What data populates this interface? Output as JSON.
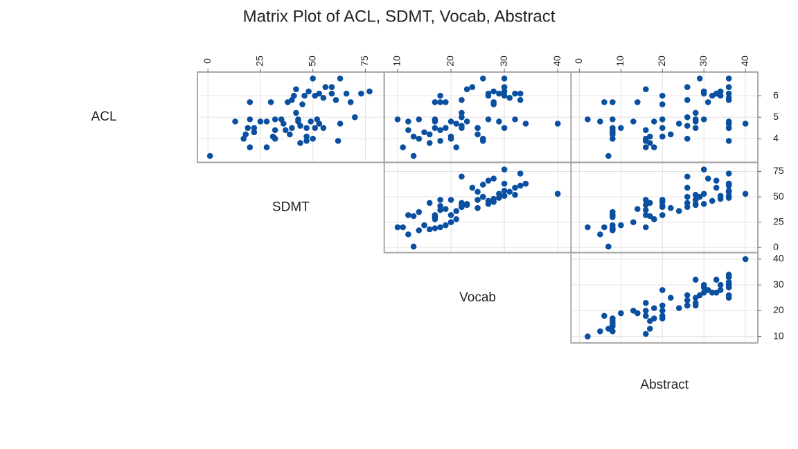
{
  "chart_data": {
    "type": "scatter-matrix",
    "title": "Matrix Plot of ACL, SDMT, Vocab, Abstract",
    "color": "#0a4fa0",
    "grid": true,
    "variables": [
      {
        "name": "ACL",
        "lim": [
          2.9,
          7.1
        ],
        "ticks": [
          4,
          5,
          6
        ],
        "values": [
          3.2,
          3.6,
          3.6,
          4.0,
          4.2,
          4.5,
          4.5,
          4.8,
          4.9,
          4.9,
          4.3,
          5.7,
          4.1,
          4.8,
          4.9,
          4.4,
          4.0,
          4.5,
          4.6,
          4.7,
          5.7,
          5.7,
          6.0,
          4.8,
          4.2,
          3.8,
          3.9,
          4.5,
          4.9,
          5.2,
          5.6,
          5.8,
          6.0,
          6.3,
          6.8,
          6.2,
          6.0,
          6.1,
          5.9,
          4.8,
          4.5,
          4.9,
          4.0,
          4.1,
          4.5,
          6.4,
          6.8,
          6.1,
          5.8,
          4.7,
          3.9,
          6.1,
          6.1,
          6.4,
          6.2,
          5.7,
          4.7,
          5.0,
          4.4,
          4.8
        ]
      },
      {
        "name": "SDMT",
        "lim": [
          -5,
          84
        ],
        "ticks": [
          0,
          25,
          50,
          75
        ],
        "values": [
          1,
          20,
          28,
          17,
          18,
          19,
          22,
          13,
          20,
          35,
          22,
          20,
          31,
          28,
          32,
          37,
          32,
          40,
          44,
          36,
          30,
          38,
          41,
          43,
          39,
          44,
          47,
          47,
          43,
          42,
          45,
          40,
          46,
          42,
          50,
          48,
          51,
          53,
          55,
          49,
          51,
          52,
          50,
          47,
          55,
          56,
          63,
          59,
          61,
          63,
          62,
          66,
          73,
          59,
          77,
          68,
          53,
          70,
          32,
          25
        ]
      },
      {
        "name": "Vocab",
        "lim": [
          7.5,
          42.5
        ],
        "ticks": [
          10,
          20,
          30,
          40
        ],
        "values": [
          13,
          11,
          21,
          14,
          16,
          17,
          19,
          12,
          10,
          14,
          15,
          18,
          13,
          17,
          17,
          18,
          20,
          22,
          22,
          21,
          17,
          19,
          18,
          23,
          25,
          16,
          18,
          25,
          27,
          22,
          28,
          22,
          27,
          23,
          26,
          28,
          30,
          29,
          31,
          29,
          30,
          32,
          26,
          20,
          25,
          30,
          30,
          32,
          33,
          34,
          26,
          27,
          33,
          24,
          30,
          28,
          40,
          22,
          12,
          20
        ]
      },
      {
        "name": "Abstract",
        "lim": [
          -2,
          43
        ],
        "ticks": [
          0,
          10,
          20,
          30,
          40
        ],
        "values": [
          7,
          16,
          18,
          8,
          8,
          8,
          10,
          5,
          2,
          8,
          8,
          6,
          17,
          18,
          20,
          16,
          16,
          20,
          26,
          24,
          8,
          14,
          20,
          28,
          22,
          17,
          16,
          28,
          30,
          28,
          20,
          26,
          32,
          16,
          29,
          34,
          34,
          30,
          36,
          36,
          36,
          28,
          26,
          20,
          36,
          36,
          36,
          33,
          36,
          36,
          36,
          33,
          36,
          26,
          30,
          31,
          40,
          26,
          8,
          13
        ]
      }
    ]
  }
}
